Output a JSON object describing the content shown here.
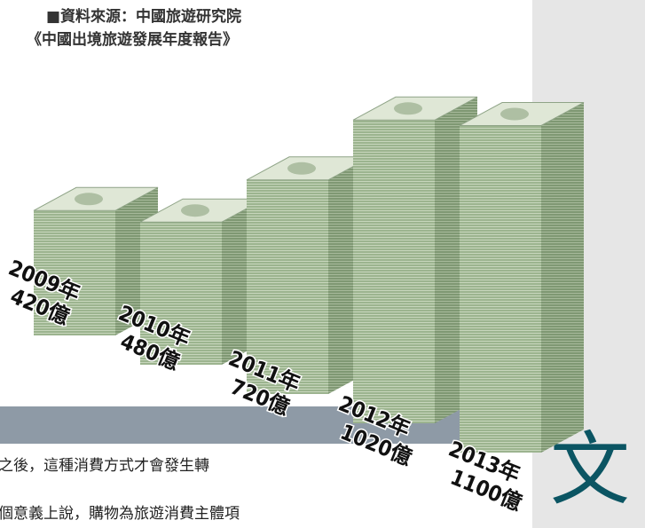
{
  "header": {
    "source_line": "■資料來源：中國旅遊研究院",
    "report_line": "《中國出境旅遊發展年度報告》"
  },
  "chart_data": {
    "type": "bar",
    "categories": [
      "2009年",
      "2010年",
      "2011年",
      "2012年",
      "2013年"
    ],
    "values": [
      420,
      480,
      720,
      1020,
      1100
    ],
    "value_labels": [
      "420億",
      "480億",
      "720億",
      "1020億",
      "1100億"
    ],
    "color": "#9cb48f"
  },
  "article": {
    "lines": [
      "之後，這種消費方式才會發生轉",
      "個意義上說，購物為旅遊消費主體項"
    ],
    "side_glyph": "文"
  }
}
